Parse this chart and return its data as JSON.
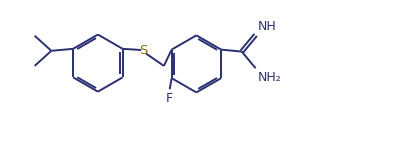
{
  "bg_color": "#ffffff",
  "line_color": "#2a3070",
  "S_color": "#8a7000",
  "line_width": 1.4,
  "dbo": 0.055,
  "fig_width": 4.06,
  "fig_height": 1.5,
  "dpi": 100,
  "xlim": [
    0.0,
    10.2
  ],
  "ylim": [
    0.4,
    4.1
  ]
}
